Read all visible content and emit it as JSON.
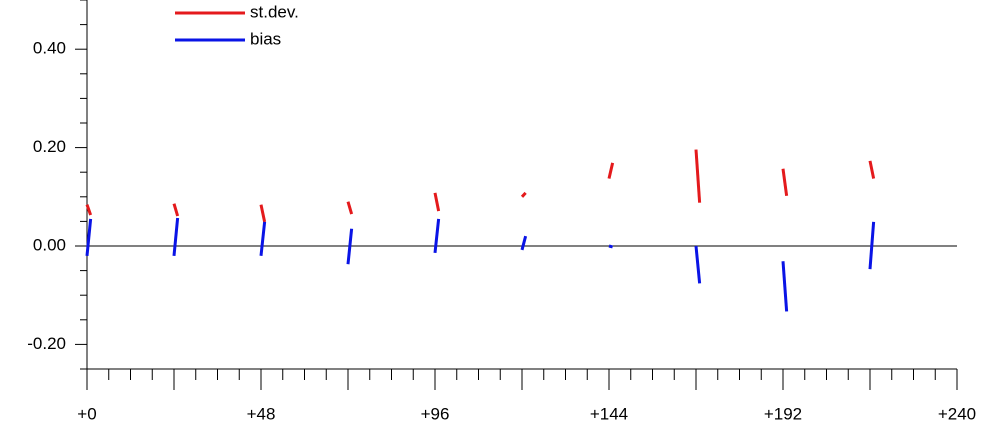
{
  "chart_data": {
    "type": "segments",
    "x": [
      [
        0,
        1
      ],
      [
        24,
        25
      ],
      [
        48,
        49
      ],
      [
        72,
        73
      ],
      [
        96,
        97
      ],
      [
        120,
        121
      ],
      [
        144,
        145
      ],
      [
        168,
        169
      ],
      [
        192,
        193
      ],
      [
        216,
        217
      ]
    ],
    "series": [
      {
        "name": "st.dev.",
        "color": "#e41a1c",
        "values": [
          [
            0.084,
            0.063
          ],
          [
            0.086,
            0.061
          ],
          [
            0.084,
            0.049
          ],
          [
            0.09,
            0.065
          ],
          [
            0.108,
            0.071
          ],
          [
            0.1,
            0.108
          ],
          [
            0.137,
            0.169
          ],
          [
            0.196,
            0.088
          ],
          [
            0.157,
            0.102
          ],
          [
            0.173,
            0.137
          ]
        ]
      },
      {
        "name": "bias",
        "color": "#0a14e6",
        "values": [
          [
            -0.02,
            0.055
          ],
          [
            -0.02,
            0.057
          ],
          [
            -0.02,
            0.049
          ],
          [
            -0.037,
            0.035
          ],
          [
            -0.014,
            0.055
          ],
          [
            -0.008,
            0.02
          ],
          [
            0.0,
            -0.002
          ],
          [
            0.0,
            -0.076
          ],
          [
            -0.031,
            -0.133
          ],
          [
            -0.047,
            0.049
          ]
        ]
      }
    ],
    "xlim": [
      0,
      240
    ],
    "xticks": [
      {
        "value": 0,
        "label": "+0"
      },
      {
        "value": 48,
        "label": "+48"
      },
      {
        "value": 96,
        "label": "+96"
      },
      {
        "value": 144,
        "label": "+144"
      },
      {
        "value": 192,
        "label": "+192"
      },
      {
        "value": 240,
        "label": "+240"
      }
    ],
    "xticks_unlabeled": [
      24,
      72,
      120,
      168,
      216
    ],
    "xminor": [
      6,
      12,
      18,
      30,
      36,
      42,
      54,
      60,
      66,
      78,
      84,
      90,
      102,
      108,
      114,
      126,
      132,
      138,
      150,
      156,
      162,
      174,
      180,
      186,
      198,
      204,
      210,
      222,
      228,
      234
    ],
    "ylim": [
      -0.25,
      0.5
    ],
    "yticks": [
      {
        "value": -0.2,
        "label": "-0.20"
      },
      {
        "value": 0,
        "label": "0.00"
      },
      {
        "value": 0.2,
        "label": "0.20"
      },
      {
        "value": 0.4,
        "label": "0.40"
      }
    ],
    "yminor": [
      -0.25,
      -0.15,
      -0.1,
      -0.05,
      0.05,
      0.1,
      0.15,
      0.25,
      0.3,
      0.35,
      0.45,
      0.5
    ],
    "zero_line": 0
  }
}
